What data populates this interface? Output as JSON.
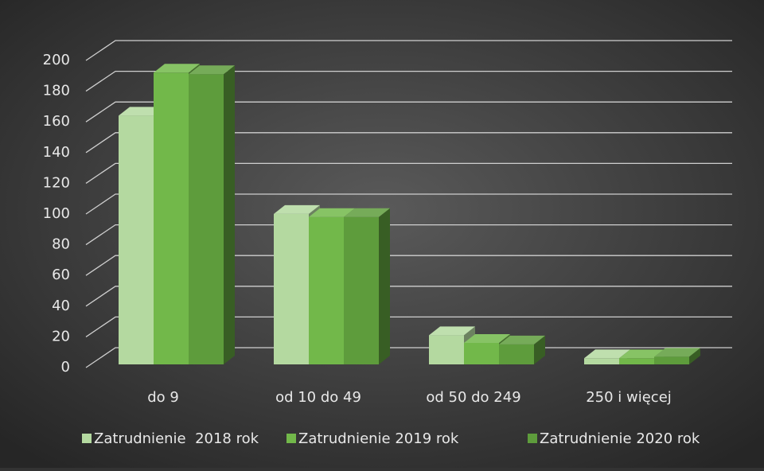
{
  "chart_data": {
    "type": "bar3d",
    "categories": [
      "do 9",
      "od 10 do 49",
      "od 50 do 249",
      "250 i więcej"
    ],
    "series": [
      {
        "name": "Zatrudnienie  2018 rok",
        "color": "#b4d9a0",
        "values": [
          162,
          98,
          19,
          4
        ]
      },
      {
        "name": "Zatrudnienie 2019 rok",
        "color": "#72b84a",
        "values": [
          190,
          96,
          14,
          4
        ]
      },
      {
        "name": "Zatrudnienie 2020 rok",
        "color": "#5e9c3c",
        "values": [
          189,
          96,
          13,
          5
        ]
      }
    ],
    "ylim": [
      0,
      200
    ],
    "yticks": [
      0,
      20,
      40,
      60,
      80,
      100,
      120,
      140,
      160,
      180,
      200
    ],
    "grid": true,
    "legend": "bottom"
  }
}
